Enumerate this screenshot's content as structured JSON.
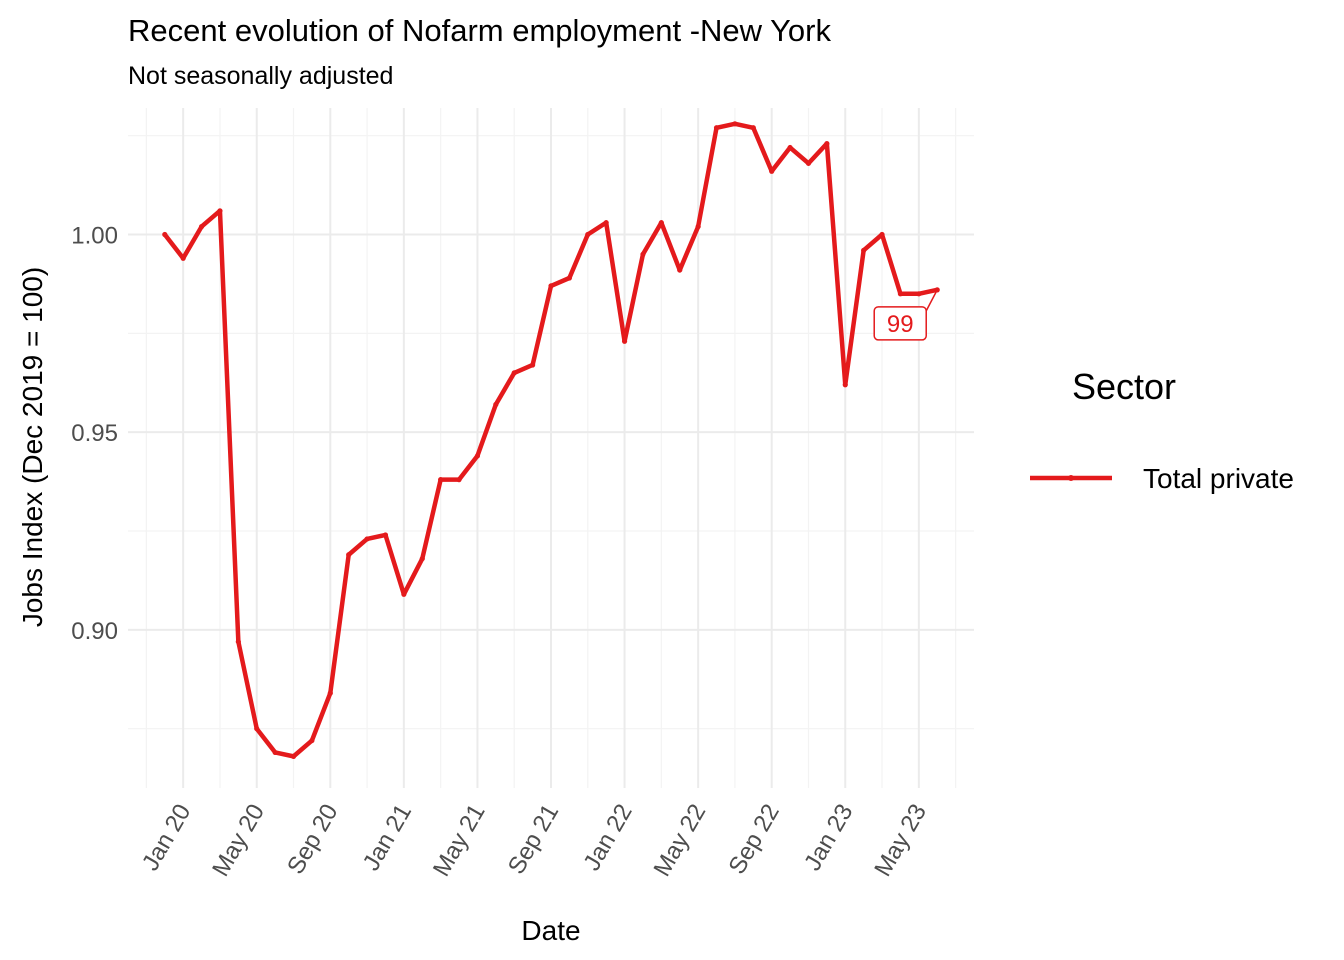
{
  "chart_data": {
    "type": "line",
    "title": "Recent evolution of Nofarm employment -New York",
    "subtitle": "Not seasonally adjusted",
    "xlabel": "Date",
    "ylabel": "Jobs Index (Dec 2019 = 100)",
    "x_ticks": [
      {
        "date": "2020-01",
        "label": "Jan 20"
      },
      {
        "date": "2020-05",
        "label": "May 20"
      },
      {
        "date": "2020-09",
        "label": "Sep 20"
      },
      {
        "date": "2021-01",
        "label": "Jan 21"
      },
      {
        "date": "2021-05",
        "label": "May 21"
      },
      {
        "date": "2021-09",
        "label": "Sep 21"
      },
      {
        "date": "2022-01",
        "label": "Jan 22"
      },
      {
        "date": "2022-05",
        "label": "May 22"
      },
      {
        "date": "2022-09",
        "label": "Sep 22"
      },
      {
        "date": "2023-01",
        "label": "Jan 23"
      },
      {
        "date": "2023-05",
        "label": "May 23"
      }
    ],
    "y_ticks": [
      {
        "value": 0.9,
        "label": "0.90"
      },
      {
        "value": 0.95,
        "label": "0.95"
      },
      {
        "value": 1.0,
        "label": "1.00"
      }
    ],
    "xlim": [
      "2019-10",
      "2023-08"
    ],
    "ylim": [
      0.86,
      1.032
    ],
    "grid": true,
    "legend": {
      "title": "Sector",
      "position": "right"
    },
    "series": [
      {
        "name": "Total private",
        "color": "#e41a1c",
        "x": [
          "2019-12",
          "2020-01",
          "2020-02",
          "2020-03",
          "2020-04",
          "2020-05",
          "2020-06",
          "2020-07",
          "2020-08",
          "2020-09",
          "2020-10",
          "2020-11",
          "2020-12",
          "2021-01",
          "2021-02",
          "2021-03",
          "2021-04",
          "2021-05",
          "2021-06",
          "2021-07",
          "2021-08",
          "2021-09",
          "2021-10",
          "2021-11",
          "2021-12",
          "2022-01",
          "2022-02",
          "2022-03",
          "2022-04",
          "2022-05",
          "2022-06",
          "2022-07",
          "2022-08",
          "2022-09",
          "2022-10",
          "2022-11",
          "2022-12",
          "2023-01",
          "2023-02",
          "2023-03",
          "2023-04",
          "2023-05",
          "2023-06"
        ],
        "values": [
          1.0,
          0.994,
          1.002,
          1.006,
          0.897,
          0.875,
          0.869,
          0.868,
          0.872,
          0.884,
          0.919,
          0.923,
          0.924,
          0.909,
          0.918,
          0.938,
          0.938,
          0.944,
          0.957,
          0.965,
          0.967,
          0.987,
          0.989,
          1.0,
          1.003,
          0.973,
          0.995,
          1.003,
          0.991,
          1.002,
          1.027,
          1.028,
          1.027,
          1.016,
          1.022,
          1.018,
          1.023,
          0.962,
          0.996,
          1.0,
          0.985,
          0.985,
          0.986
        ]
      }
    ],
    "annotations": [
      {
        "text": "99",
        "x": "2023-06",
        "y": 0.986
      }
    ]
  }
}
